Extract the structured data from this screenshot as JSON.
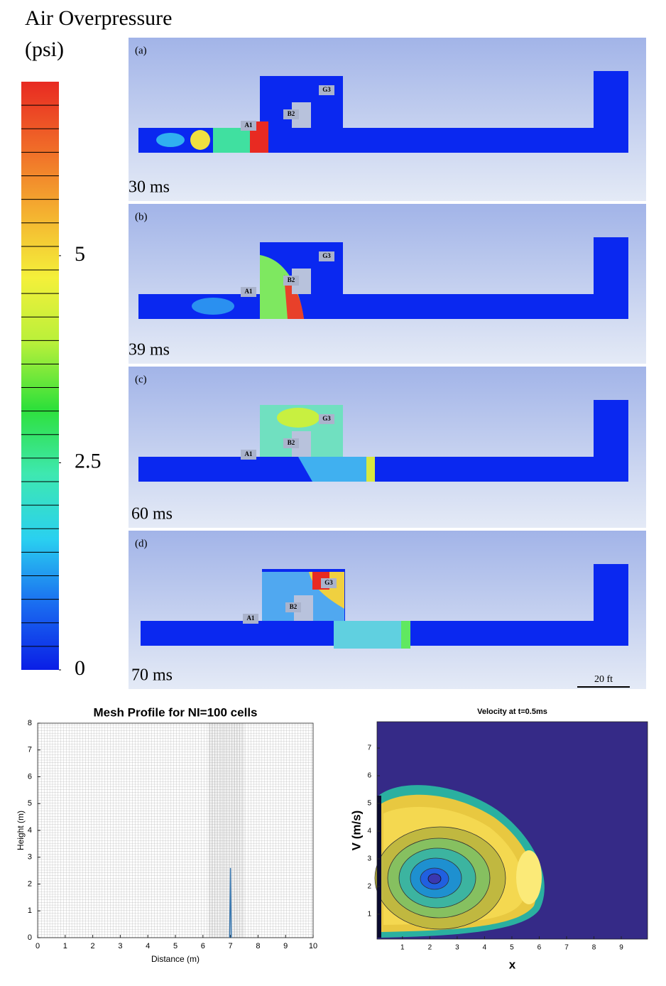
{
  "chart_data": [
    {
      "type": "colorbar",
      "title": "Air Overpressure",
      "subtitle": "(psi)",
      "ylim": [
        0,
        7.1
      ],
      "yticks": [
        0,
        2.5,
        5
      ],
      "colors": [
        "#0a1ee6",
        "#1a6cf0",
        "#2ad0f0",
        "#3ee8b0",
        "#2ee03a",
        "#b8f03a",
        "#f4f03a",
        "#f4b030",
        "#f06a28",
        "#e82a22"
      ]
    },
    {
      "type": "line",
      "title": "Mesh Profile for NI=100 cells",
      "xlabel": "Distance (m)",
      "ylabel": "Height (m)",
      "xlim": [
        0,
        10
      ],
      "ylim": [
        0,
        8
      ],
      "xticks": [
        0,
        1,
        2,
        3,
        4,
        5,
        6,
        7,
        8,
        9,
        10
      ],
      "yticks": [
        0,
        1,
        2,
        3,
        4,
        5,
        6,
        7,
        8
      ],
      "x": [
        6.97,
        7,
        7.03
      ],
      "values": [
        0,
        2.6,
        0
      ],
      "color": "#3a78b0"
    },
    {
      "type": "contour",
      "title": "Velocity at t=0.5ms",
      "xlabel": "x",
      "ylabel": "V (m/s)",
      "xlim": [
        0.07,
        9.96
      ],
      "ylim": [
        0.1,
        7.95
      ],
      "xticks": [
        1,
        2,
        3,
        4,
        5,
        6,
        7,
        8,
        9
      ],
      "yticks": [
        1,
        2,
        3,
        4,
        5,
        6,
        7
      ],
      "background": "#352a87"
    }
  ],
  "panels": [
    {
      "letter": "(a)",
      "time": "30 ms",
      "labels": [
        "A1",
        "B2",
        "G3"
      ]
    },
    {
      "letter": "(b)",
      "time": "39 ms",
      "labels": [
        "A1",
        "B2",
        "G3"
      ]
    },
    {
      "letter": "(c)",
      "time": "60 ms",
      "labels": [
        "A1",
        "B2",
        "G3"
      ]
    },
    {
      "letter": "(d)",
      "time": "70 ms",
      "labels": [
        "A1",
        "B2",
        "G3"
      ]
    }
  ],
  "scale_bar": "20 ft"
}
